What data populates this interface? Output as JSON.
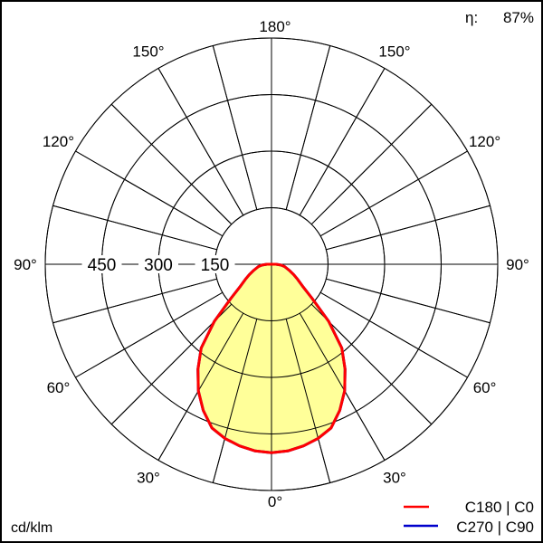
{
  "efficiency": {
    "symbol": "η:",
    "value": "87%"
  },
  "unit_label": "cd/klm",
  "chart_data": {
    "type": "polar-line",
    "unit": "cd/klm",
    "radial_ticks": [
      150,
      300,
      450
    ],
    "radial_max": 600,
    "angle_step_deg": 15,
    "angle_labels": [
      "0°",
      "30°",
      "60°",
      "90°",
      "120°",
      "150°",
      "180°"
    ],
    "angle_label_values": [
      0,
      30,
      60,
      90,
      120,
      150,
      180
    ],
    "series": [
      {
        "name": "C180 | C0",
        "color": "#ff0000",
        "fill": "#ffff99",
        "angles": [
          0,
          5,
          10,
          15,
          20,
          25,
          30,
          35,
          40,
          45,
          50,
          55,
          60,
          65,
          70,
          75,
          80,
          85,
          90
        ],
        "values": [
          500,
          497,
          489,
          478,
          462,
          428,
          388,
          340,
          290,
          215,
          140,
          100,
          80,
          65,
          52,
          42,
          35,
          25,
          12
        ]
      },
      {
        "name": "C270 | C90",
        "color": "#0000cc",
        "angles": [
          0,
          5,
          10,
          15,
          20,
          25,
          30,
          35,
          40,
          45,
          50,
          55,
          60,
          65,
          70,
          75,
          80,
          85,
          90
        ],
        "values": [
          500,
          497,
          489,
          478,
          462,
          428,
          388,
          340,
          290,
          215,
          140,
          100,
          80,
          65,
          52,
          42,
          35,
          25,
          12
        ]
      }
    ]
  }
}
